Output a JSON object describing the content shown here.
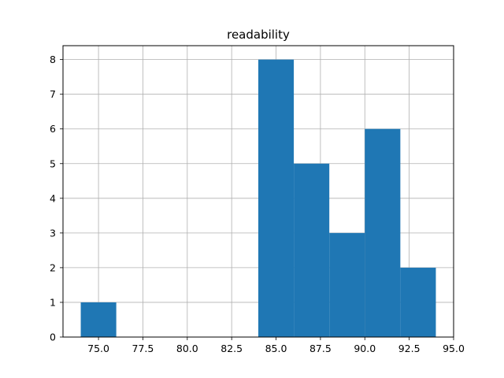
{
  "chart_data": {
    "type": "bar",
    "title": "readability",
    "xlabel": "",
    "ylabel": "",
    "bins": [
      {
        "x0": 74,
        "x1": 76,
        "count": 1
      },
      {
        "x0": 76,
        "x1": 78,
        "count": 0
      },
      {
        "x0": 78,
        "x1": 80,
        "count": 0
      },
      {
        "x0": 80,
        "x1": 82,
        "count": 0
      },
      {
        "x0": 82,
        "x1": 84,
        "count": 0
      },
      {
        "x0": 84,
        "x1": 86,
        "count": 8
      },
      {
        "x0": 86,
        "x1": 88,
        "count": 5
      },
      {
        "x0": 88,
        "x1": 90,
        "count": 3
      },
      {
        "x0": 90,
        "x1": 92,
        "count": 6
      },
      {
        "x0": 92,
        "x1": 94,
        "count": 2
      }
    ],
    "xlim": [
      73,
      95
    ],
    "ylim": [
      0,
      8.4
    ],
    "x_ticks": [
      "75.0",
      "77.5",
      "80.0",
      "82.5",
      "85.0",
      "87.5",
      "90.0",
      "92.5",
      "95.0"
    ],
    "x_tick_values": [
      75,
      77.5,
      80,
      82.5,
      85,
      87.5,
      90,
      92.5,
      95
    ],
    "y_ticks": [
      "0",
      "1",
      "2",
      "3",
      "4",
      "5",
      "6",
      "7",
      "8"
    ],
    "y_tick_values": [
      0,
      1,
      2,
      3,
      4,
      5,
      6,
      7,
      8
    ],
    "grid": true,
    "bar_color": "#1f77b4",
    "grid_color": "#b0b0b0"
  }
}
